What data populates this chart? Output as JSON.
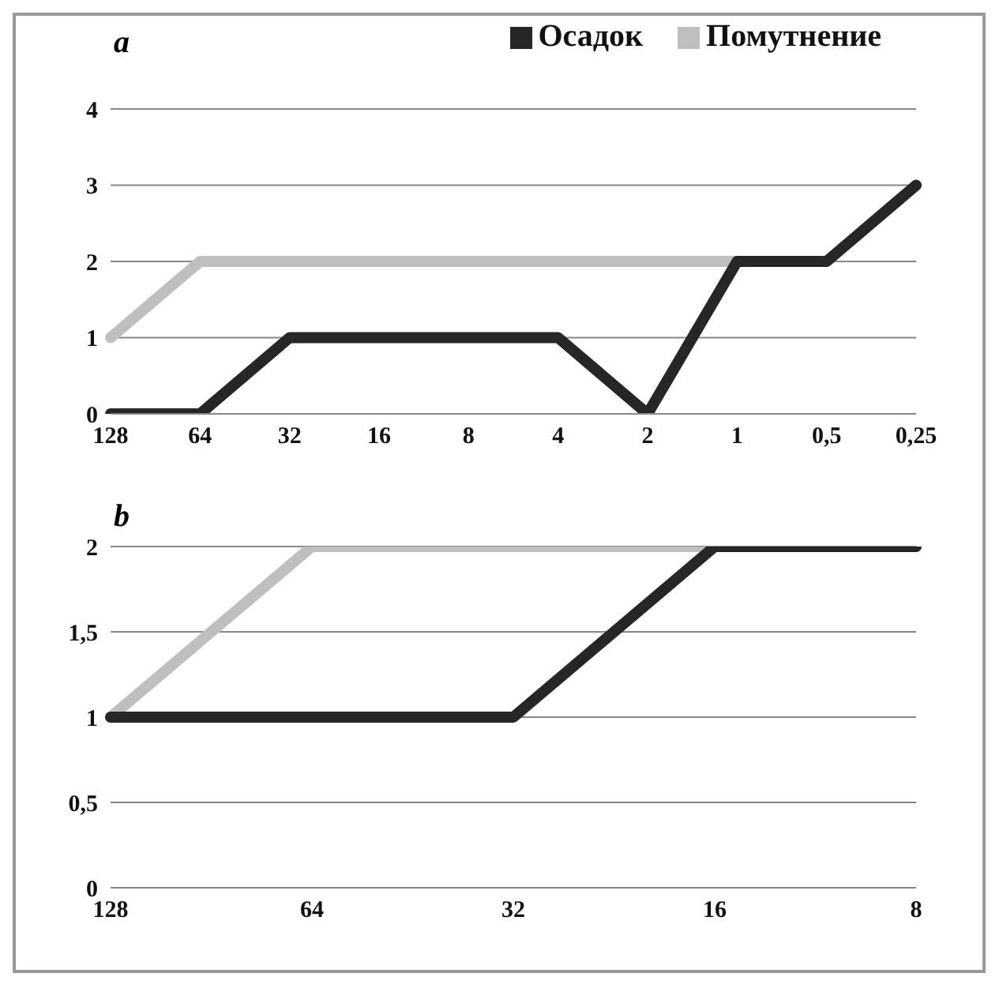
{
  "chart_data": [
    {
      "type": "line",
      "title": "a",
      "categories": [
        "128",
        "64",
        "32",
        "16",
        "8",
        "4",
        "2",
        "1",
        "0,5",
        "0,25"
      ],
      "series": [
        {
          "name": "Помутнение",
          "color": "#bfbfbf",
          "values": [
            1,
            2,
            2,
            2,
            2,
            2,
            2,
            2,
            2,
            3
          ]
        },
        {
          "name": "Осадок",
          "color": "#262626",
          "values": [
            0,
            0,
            1,
            1,
            1,
            1,
            0,
            2,
            2,
            3
          ]
        }
      ],
      "ylim": [
        0,
        4
      ],
      "yticks": [
        0,
        1,
        2,
        3,
        4
      ],
      "grid": "y",
      "legend": "top right",
      "marker": "none"
    },
    {
      "type": "line",
      "title": "b",
      "categories": [
        "128",
        "64",
        "32",
        "16",
        "8"
      ],
      "series": [
        {
          "color": "#bfbfbf",
          "values": [
            1,
            2,
            2,
            2,
            2
          ]
        },
        {
          "color": "#262626",
          "values": [
            1,
            1,
            1,
            2,
            2
          ]
        }
      ],
      "ylim": [
        0,
        2
      ],
      "yticks": [
        0,
        {
          "value": 0.5,
          "label": "0,5"
        },
        1,
        {
          "value": 1.5,
          "label": "1,5"
        },
        2
      ],
      "grid": "y",
      "marker": "none"
    }
  ]
}
